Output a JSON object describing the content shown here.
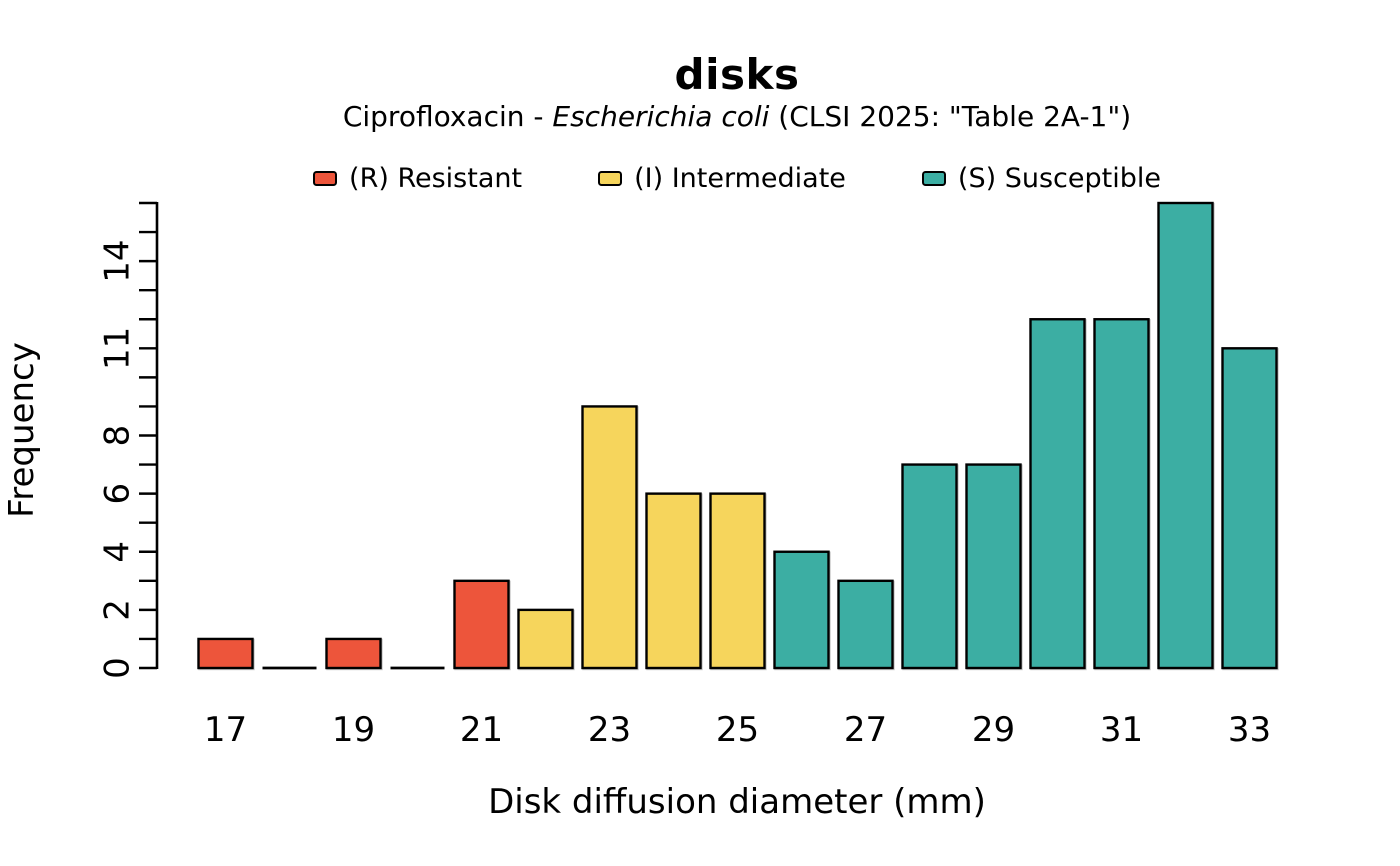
{
  "title": "disks",
  "subtitle": {
    "prefix": "Ciprofloxacin - ",
    "organism": "Escherichia coli",
    "suffix": " (CLSI 2025: \"Table 2A-1\")"
  },
  "legend": [
    {
      "key": "R",
      "label": "(R) Resistant",
      "color": "#ED553B"
    },
    {
      "key": "I",
      "label": "(I) Intermediate",
      "color": "#F6D55C"
    },
    {
      "key": "S",
      "label": "(S) Susceptible",
      "color": "#3CAEA3"
    }
  ],
  "chart_data": {
    "type": "bar",
    "title": "disks",
    "subtitle": "Ciprofloxacin - Escherichia coli (CLSI 2025: \"Table 2A-1\")",
    "xlabel": "Disk diffusion diameter (mm)",
    "ylabel": "Frequency",
    "x": [
      17,
      18,
      19,
      20,
      21,
      22,
      23,
      24,
      25,
      26,
      27,
      28,
      29,
      30,
      31,
      32,
      33
    ],
    "values": [
      1,
      0,
      1,
      0,
      3,
      2,
      9,
      6,
      6,
      4,
      3,
      7,
      7,
      12,
      12,
      16,
      11
    ],
    "categories": [
      "R",
      "R",
      "R",
      "R",
      "R",
      "I",
      "I",
      "I",
      "I",
      "S",
      "S",
      "S",
      "S",
      "S",
      "S",
      "S",
      "S"
    ],
    "colors": {
      "R": "#ED553B",
      "I": "#F6D55C",
      "S": "#3CAEA3"
    },
    "ylim": [
      0,
      16
    ],
    "y_tick_every": 1,
    "y_labeled_ticks": [
      0,
      2,
      4,
      6,
      8,
      11,
      14
    ],
    "x_labeled_ticks": [
      17,
      19,
      21,
      23,
      25,
      27,
      29,
      31,
      33
    ],
    "grid": false,
    "legend_position": "top",
    "axis_color": "#000000",
    "bar_border_color": "#000000"
  }
}
